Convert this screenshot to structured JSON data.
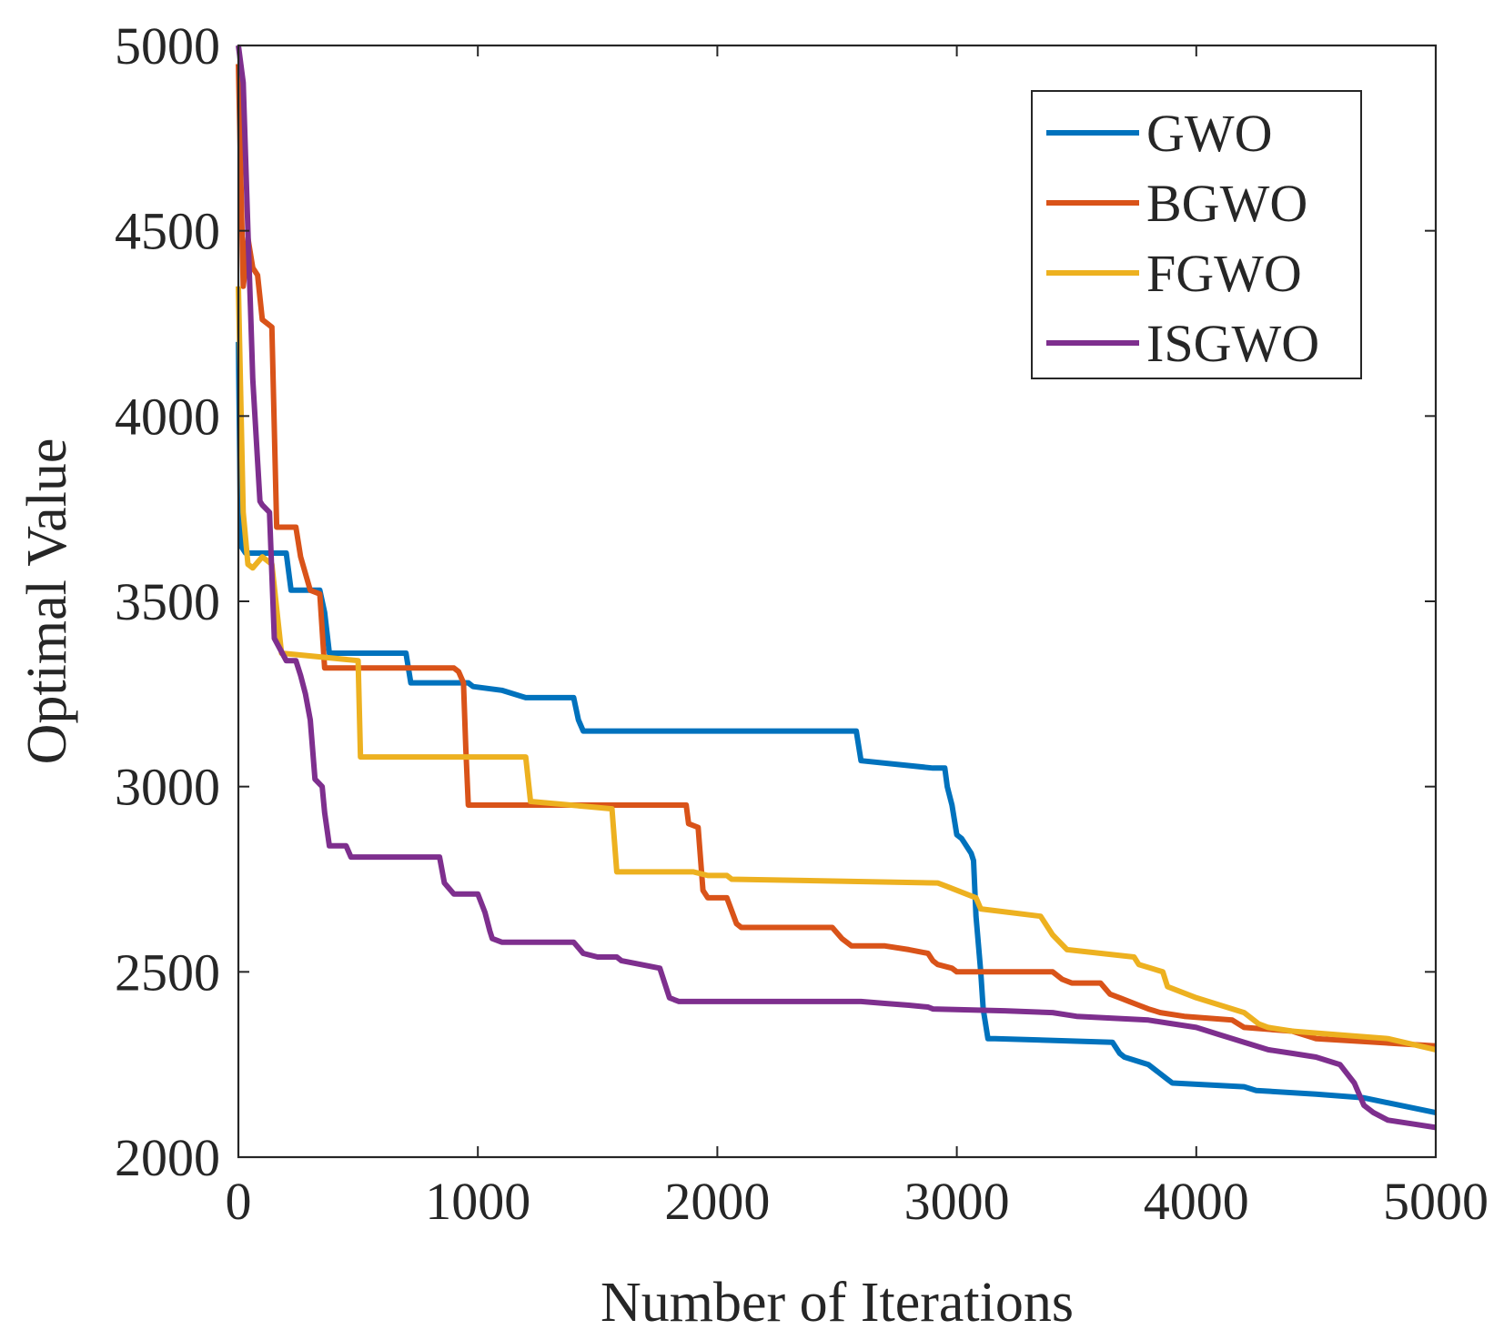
{
  "chart_data": {
    "type": "line",
    "title": "",
    "xlabel": "Number of Iterations",
    "ylabel": "Optimal Value",
    "xlim": [
      0,
      5000
    ],
    "ylim": [
      2000,
      5000
    ],
    "xticks": [
      0,
      1000,
      2000,
      3000,
      4000,
      5000
    ],
    "yticks": [
      2000,
      2500,
      3000,
      3500,
      4000,
      4500,
      5000
    ],
    "xtick_labels": [
      "0",
      "1000",
      "2000",
      "3000",
      "4000",
      "5000"
    ],
    "ytick_labels": [
      "2000",
      "2500",
      "3000",
      "3500",
      "4000",
      "4500",
      "5000"
    ],
    "grid": false,
    "legend_position": "top-right",
    "series": [
      {
        "name": "GWO",
        "color": "#0072BD",
        "x": [
          0,
          10,
          20,
          30,
          200,
          220,
          340,
          360,
          380,
          700,
          720,
          960,
          980,
          1100,
          1200,
          1400,
          1420,
          1440,
          2580,
          2600,
          2900,
          2950,
          2960,
          2980,
          3000,
          3020,
          3060,
          3070,
          3080,
          3100,
          3110,
          3130,
          3160,
          3650,
          3680,
          3700,
          3800,
          3880,
          3900,
          4200,
          4250,
          4500,
          4700,
          5000
        ],
        "y": [
          4200,
          3650,
          3640,
          3630,
          3630,
          3530,
          3530,
          3470,
          3360,
          3360,
          3280,
          3280,
          3270,
          3260,
          3240,
          3240,
          3180,
          3150,
          3150,
          3070,
          3050,
          3050,
          3000,
          2950,
          2870,
          2860,
          2820,
          2800,
          2650,
          2500,
          2400,
          2320,
          2320,
          2310,
          2280,
          2270,
          2250,
          2210,
          2200,
          2190,
          2180,
          2170,
          2160,
          2120
        ]
      },
      {
        "name": "BGWO",
        "color": "#D95319",
        "x": [
          0,
          20,
          30,
          40,
          60,
          80,
          100,
          120,
          140,
          160,
          240,
          260,
          300,
          340,
          360,
          900,
          920,
          940,
          950,
          960,
          1870,
          1880,
          1920,
          1940,
          1960,
          2040,
          2080,
          2100,
          2480,
          2520,
          2560,
          2700,
          2800,
          2880,
          2900,
          2920,
          2980,
          3000,
          3400,
          3440,
          3480,
          3600,
          3640,
          3680,
          3720,
          3760,
          3800,
          3850,
          3950,
          4150,
          4200,
          4400,
          4500,
          5000
        ],
        "y": [
          4950,
          4350,
          4400,
          4480,
          4400,
          4380,
          4260,
          4250,
          4240,
          3700,
          3700,
          3620,
          3530,
          3520,
          3320,
          3320,
          3310,
          3280,
          3100,
          2950,
          2950,
          2900,
          2890,
          2720,
          2700,
          2700,
          2630,
          2620,
          2620,
          2590,
          2570,
          2570,
          2560,
          2550,
          2530,
          2520,
          2510,
          2500,
          2500,
          2480,
          2470,
          2470,
          2440,
          2430,
          2420,
          2410,
          2400,
          2390,
          2380,
          2370,
          2350,
          2340,
          2320,
          2300
        ]
      },
      {
        "name": "FGWO",
        "color": "#EDB120",
        "x": [
          0,
          20,
          40,
          60,
          100,
          140,
          160,
          180,
          500,
          510,
          1200,
          1220,
          1560,
          1580,
          1900,
          1960,
          2040,
          2060,
          2920,
          2960,
          3080,
          3100,
          3350,
          3400,
          3460,
          3740,
          3760,
          3860,
          3880,
          4000,
          4200,
          4260,
          4300,
          4400,
          4600,
          4800,
          5000
        ],
        "y": [
          4350,
          3740,
          3600,
          3590,
          3620,
          3600,
          3480,
          3360,
          3340,
          3080,
          3080,
          2960,
          2940,
          2770,
          2770,
          2760,
          2760,
          2750,
          2740,
          2730,
          2700,
          2670,
          2650,
          2600,
          2560,
          2540,
          2520,
          2500,
          2460,
          2430,
          2390,
          2360,
          2350,
          2340,
          2330,
          2320,
          2290
        ]
      },
      {
        "name": "ISGWO",
        "color": "#7E2F8E",
        "x": [
          0,
          20,
          30,
          40,
          50,
          60,
          90,
          100,
          130,
          150,
          200,
          240,
          260,
          280,
          300,
          320,
          350,
          360,
          380,
          450,
          470,
          840,
          860,
          900,
          1000,
          1030,
          1050,
          1060,
          1100,
          1400,
          1440,
          1500,
          1580,
          1600,
          1680,
          1760,
          1800,
          1820,
          1840,
          2600,
          2700,
          2800,
          2880,
          2900,
          3200,
          3400,
          3500,
          3800,
          3900,
          4000,
          4100,
          4200,
          4300,
          4400,
          4500,
          4600,
          4660,
          4700,
          4740,
          4800,
          4900,
          5000
        ],
        "y": [
          5000,
          4900,
          4700,
          4500,
          4300,
          4100,
          3770,
          3760,
          3740,
          3400,
          3340,
          3340,
          3300,
          3250,
          3180,
          3020,
          3000,
          2930,
          2840,
          2840,
          2810,
          2810,
          2740,
          2710,
          2710,
          2660,
          2610,
          2590,
          2580,
          2580,
          2550,
          2540,
          2540,
          2530,
          2520,
          2510,
          2430,
          2425,
          2420,
          2420,
          2415,
          2410,
          2405,
          2400,
          2395,
          2390,
          2380,
          2370,
          2360,
          2350,
          2330,
          2310,
          2290,
          2280,
          2270,
          2250,
          2200,
          2140,
          2120,
          2100,
          2090,
          2080
        ]
      }
    ]
  }
}
